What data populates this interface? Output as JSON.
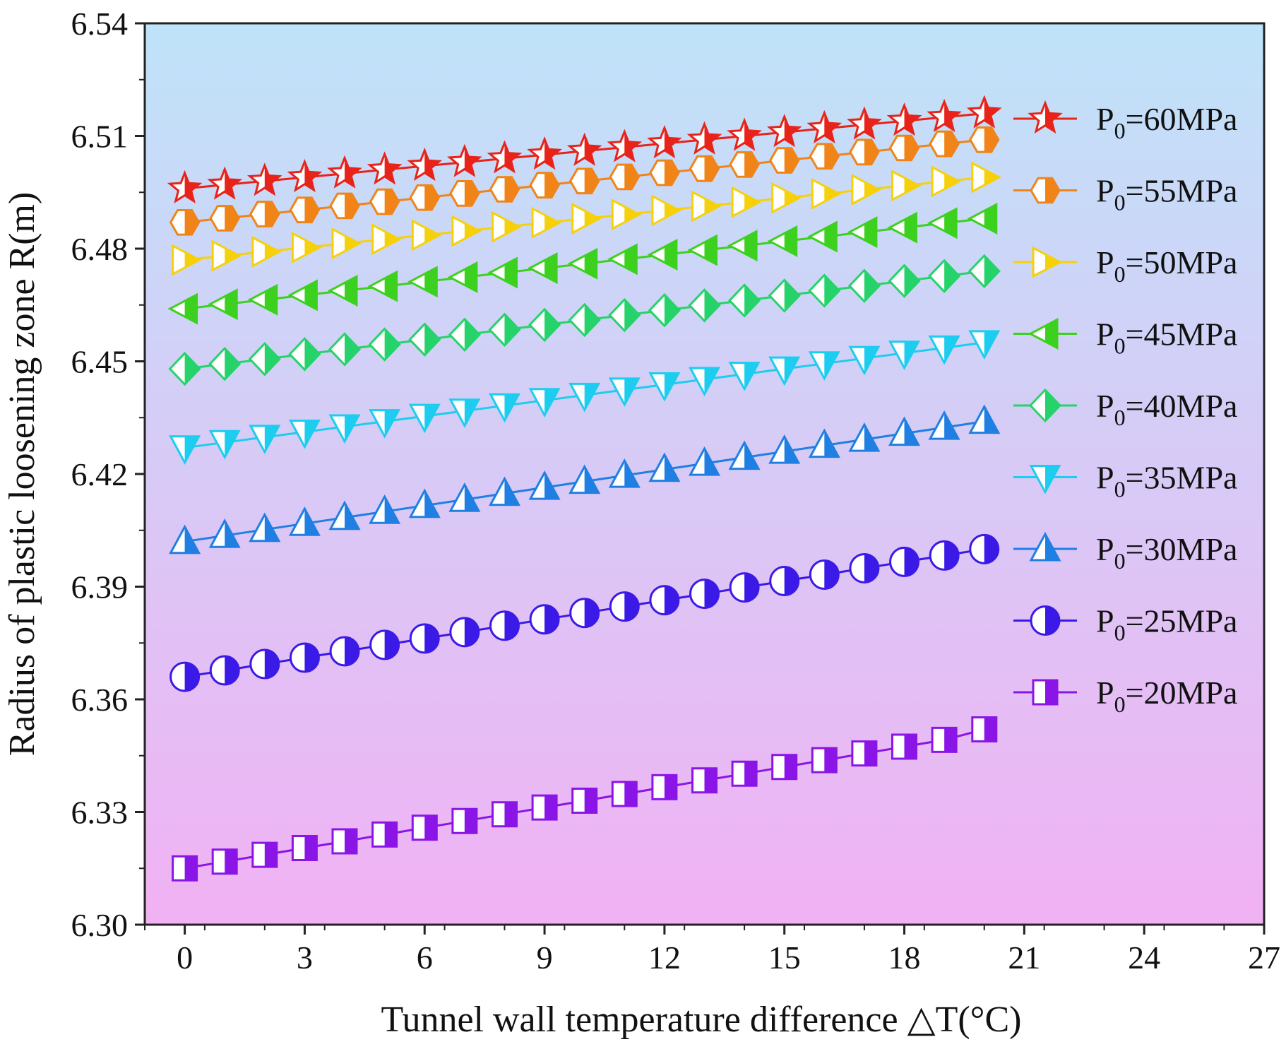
{
  "chart_data": {
    "type": "line",
    "title": "",
    "xlabel": "Tunnel wall temperature difference △T(°C)",
    "ylabel": "Radius of plastic loosening zone R(m)",
    "xlim": [
      -1,
      27
    ],
    "ylim": [
      6.3,
      6.54
    ],
    "x_ticks": [
      "0",
      "3",
      "6",
      "9",
      "12",
      "15",
      "18",
      "21",
      "24",
      "27"
    ],
    "y_ticks": [
      "6.30",
      "6.33",
      "6.36",
      "6.39",
      "6.42",
      "6.45",
      "6.48",
      "6.51",
      "6.54"
    ],
    "x": [
      0,
      1,
      2,
      3,
      4,
      5,
      6,
      7,
      8,
      9,
      10,
      11,
      12,
      13,
      14,
      15,
      16,
      17,
      18,
      19,
      20
    ],
    "legend_position": "right",
    "background_gradient": [
      "#bfe3f9",
      "#f1b1f3"
    ],
    "series": [
      {
        "name": "P0=60MPa",
        "legend_main": "P",
        "legend_sub": "0",
        "legend_rest": "=60MPa",
        "marker": "star",
        "color": "#e8231a",
        "values": [
          6.496,
          6.497,
          6.498,
          6.499,
          6.5,
          6.501,
          6.502,
          6.503,
          6.504,
          6.505,
          6.506,
          6.507,
          6.508,
          6.509,
          6.51,
          6.511,
          6.512,
          6.513,
          6.514,
          6.515,
          6.516
        ]
      },
      {
        "name": "P0=55MPa",
        "legend_main": "P",
        "legend_sub": "0",
        "legend_rest": "=55MPa",
        "marker": "hexagon",
        "color": "#f08418",
        "values": [
          6.487,
          6.4881,
          6.4892,
          6.4903,
          6.4914,
          6.4925,
          6.4936,
          6.4947,
          6.4958,
          6.4969,
          6.498,
          6.4991,
          6.5002,
          6.5013,
          6.5024,
          6.5035,
          6.5046,
          6.5057,
          6.5068,
          6.5079,
          6.509
        ]
      },
      {
        "name": "P0=50MPa",
        "legend_main": "P",
        "legend_sub": "0",
        "legend_rest": "=50MPa",
        "marker": "triangle-right",
        "color": "#f6d10b",
        "values": [
          6.477,
          6.4781,
          6.4792,
          6.4803,
          6.4814,
          6.4825,
          6.4836,
          6.4847,
          6.4858,
          6.4869,
          6.488,
          6.4891,
          6.4902,
          6.4913,
          6.4924,
          6.4935,
          6.4946,
          6.4957,
          6.4968,
          6.4979,
          6.499
        ]
      },
      {
        "name": "P0=45MPa",
        "legend_main": "P",
        "legend_sub": "0",
        "legend_rest": "=45MPa",
        "marker": "triangle-left",
        "color": "#3dd11f",
        "values": [
          6.464,
          6.4652,
          6.4664,
          6.4676,
          6.4688,
          6.47,
          6.4712,
          6.4724,
          6.4736,
          6.4748,
          6.476,
          6.4772,
          6.4784,
          6.4796,
          6.4808,
          6.482,
          6.4832,
          6.4844,
          6.4856,
          6.4868,
          6.488
        ]
      },
      {
        "name": "P0=40MPa",
        "legend_main": "P",
        "legend_sub": "0",
        "legend_rest": "=40MPa",
        "marker": "diamond",
        "color": "#25d36a",
        "values": [
          6.448,
          6.4493,
          6.4506,
          6.4519,
          6.4532,
          6.4545,
          6.4558,
          6.4571,
          6.4584,
          6.4597,
          6.461,
          6.4623,
          6.4636,
          6.4649,
          6.4662,
          6.4675,
          6.4688,
          6.4701,
          6.4714,
          6.4727,
          6.474
        ]
      },
      {
        "name": "P0=35MPa",
        "legend_main": "P",
        "legend_sub": "0",
        "legend_rest": "=35MPa",
        "marker": "triangle-down",
        "color": "#1ccdf0",
        "values": [
          6.427,
          6.4284,
          6.4298,
          6.4312,
          6.4326,
          6.434,
          6.4354,
          6.4368,
          6.4382,
          6.4396,
          6.441,
          6.4424,
          6.4438,
          6.4452,
          6.4466,
          6.448,
          6.4494,
          6.4508,
          6.4522,
          6.4536,
          6.455
        ]
      },
      {
        "name": "P0=30MPa",
        "legend_main": "P",
        "legend_sub": "0",
        "legend_rest": "=30MPa",
        "marker": "triangle-up",
        "color": "#1f7fe3",
        "values": [
          6.402,
          6.4036,
          6.4052,
          6.4068,
          6.4084,
          6.41,
          6.4116,
          6.4132,
          6.4148,
          6.4164,
          6.418,
          6.4196,
          6.4212,
          6.4228,
          6.4244,
          6.426,
          6.4276,
          6.4292,
          6.4308,
          6.4324,
          6.434
        ]
      },
      {
        "name": "P0=25MPa",
        "legend_main": "P",
        "legend_sub": "0",
        "legend_rest": "=25MPa",
        "marker": "circle",
        "color": "#3b19e6",
        "values": [
          6.366,
          6.3677,
          6.3694,
          6.3711,
          6.3728,
          6.3745,
          6.3762,
          6.3779,
          6.3796,
          6.3813,
          6.383,
          6.3847,
          6.3864,
          6.3881,
          6.3898,
          6.3915,
          6.3932,
          6.3949,
          6.3966,
          6.3983,
          6.4
        ]
      },
      {
        "name": "P0=20MPa",
        "legend_main": "P",
        "legend_sub": "0",
        "legend_rest": "=20MPa",
        "marker": "square",
        "color": "#8a15e6",
        "values": [
          6.315,
          6.3168,
          6.3186,
          6.3204,
          6.3222,
          6.324,
          6.3258,
          6.3276,
          6.3294,
          6.3312,
          6.333,
          6.3348,
          6.3366,
          6.3384,
          6.3402,
          6.342,
          6.3438,
          6.3456,
          6.3474,
          6.3492,
          6.352
        ]
      }
    ]
  }
}
